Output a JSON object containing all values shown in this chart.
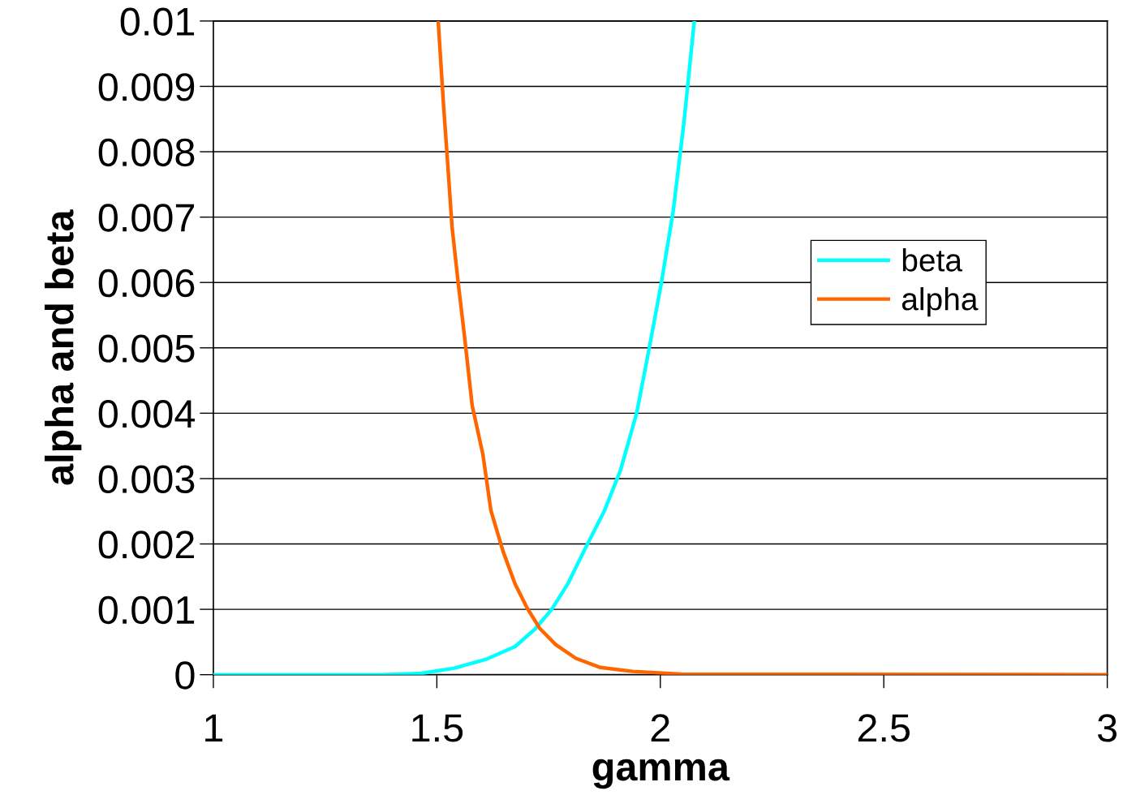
{
  "chart_data": {
    "type": "line",
    "xlabel": "gamma",
    "ylabel": "alpha and beta",
    "xlim": [
      1,
      3
    ],
    "xticks": [
      1,
      1.5,
      2,
      2.5,
      3
    ],
    "ylim": [
      0,
      0.01
    ],
    "yticks": [
      0,
      0.001,
      0.002,
      0.003,
      0.004,
      0.005,
      0.006,
      0.007,
      0.008,
      0.009,
      0.01
    ],
    "grid": "y",
    "legend": "right",
    "marker": "none",
    "line_style": "solid",
    "series": [
      {
        "name": "beta",
        "color": "#00ffff",
        "x": [
          1,
          1.376,
          1.466,
          1.539,
          1.612,
          1.675,
          1.72,
          1.757,
          1.793,
          1.829,
          1.875,
          1.911,
          1.947,
          1.975,
          2.002,
          2.029,
          2.053,
          2.076
        ],
        "values": [
          0,
          0,
          2e-05,
          0.0001,
          0.00024,
          0.00043,
          0.0007,
          0.001,
          0.00139,
          0.00189,
          0.00251,
          0.00313,
          0.004,
          0.00499,
          0.00598,
          0.0071,
          0.00846,
          0.01
        ]
      },
      {
        "name": "alpha",
        "color": "#ff6600",
        "x": [
          1.503,
          1.515,
          1.524,
          1.534,
          1.548,
          1.563,
          1.579,
          1.603,
          1.621,
          1.648,
          1.675,
          1.702,
          1.73,
          1.766,
          1.811,
          1.866,
          1.938,
          2.047,
          3
        ],
        "values": [
          0.01,
          0.00871,
          0.00784,
          0.00685,
          0.00598,
          0.00511,
          0.00412,
          0.00337,
          0.00251,
          0.00189,
          0.00139,
          0.00102,
          0.00071,
          0.00046,
          0.00025,
          0.00011,
          5e-05,
          1e-05,
          0
        ]
      }
    ]
  }
}
